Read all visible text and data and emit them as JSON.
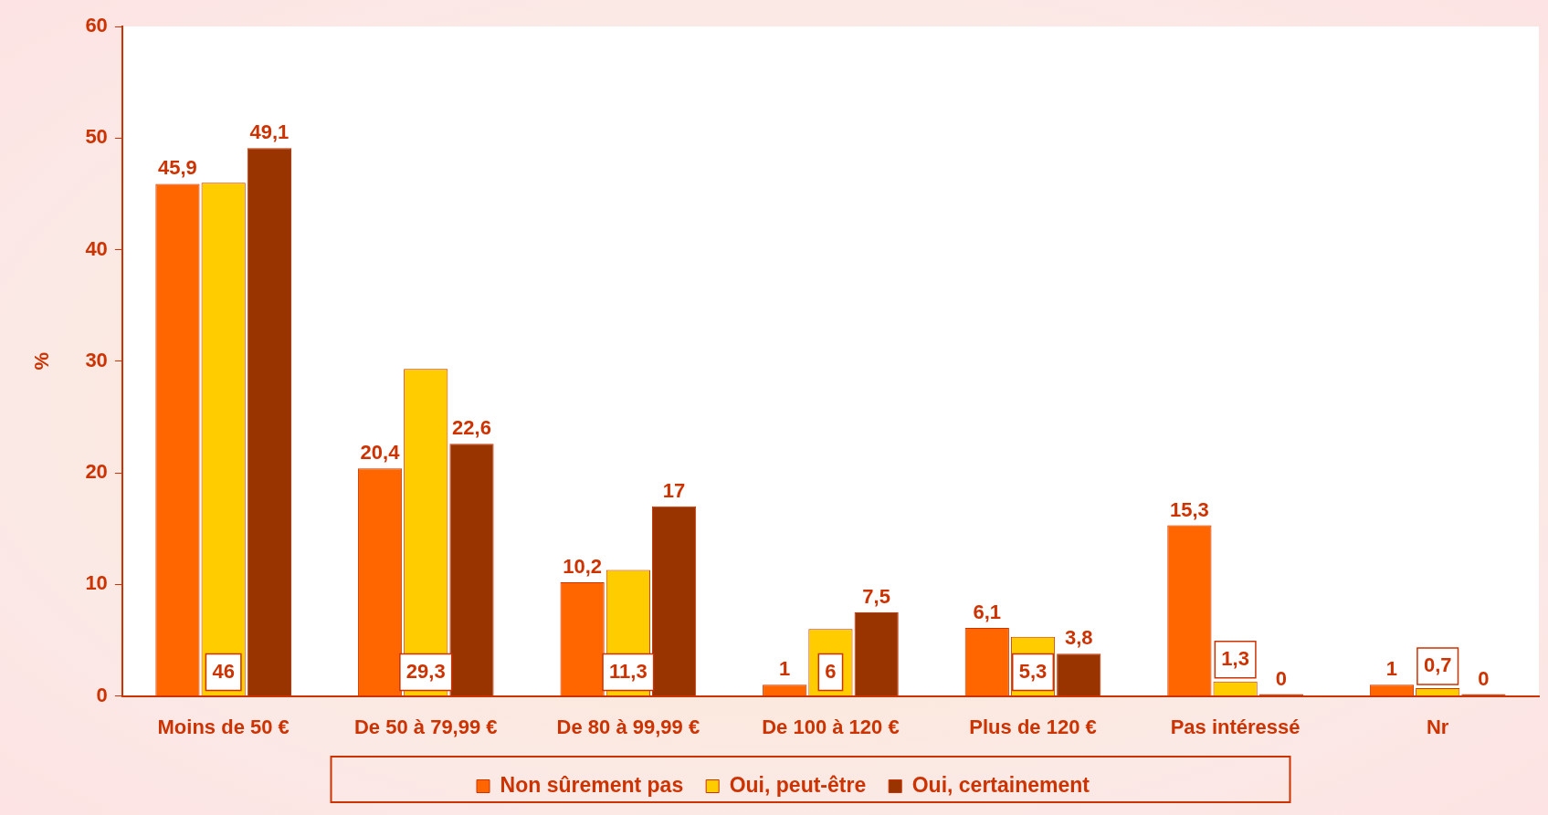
{
  "chart_data": {
    "type": "bar",
    "ylabel": "%",
    "categories": [
      "Moins de 50 €",
      "De 50 à 79,99 €",
      "De 80 à 99,99 €",
      "De 100 à 120 €",
      "Plus de 120 €",
      "Pas intéressé",
      "Nr"
    ],
    "series": [
      {
        "name": "Non sûrement pas",
        "color": "#ff6600",
        "values": [
          45.9,
          20.4,
          10.2,
          1,
          6.1,
          15.3,
          1
        ],
        "value_labels": [
          "45,9",
          "20,4",
          "10,2",
          "1",
          "6,1",
          "15,3",
          "1"
        ]
      },
      {
        "name": "Oui, peut-être",
        "color": "#ffcc00",
        "values": [
          46,
          29.3,
          11.3,
          6,
          5.3,
          1.3,
          0.7
        ],
        "value_labels": [
          "46",
          "29,3",
          "11,3",
          "6",
          "5,3",
          "1,3",
          "0,7"
        ]
      },
      {
        "name": "Oui, certainement",
        "color": "#993300",
        "values": [
          49.1,
          22.6,
          17,
          7.5,
          3.8,
          0,
          0
        ],
        "value_labels": [
          "49,1",
          "22,6",
          "17",
          "7,5",
          "3,8",
          "0",
          "0"
        ]
      }
    ],
    "ylim": [
      0,
      60
    ],
    "yticks": [
      0,
      10,
      20,
      30,
      40,
      50,
      60
    ],
    "grid": false,
    "legend": "bottom"
  }
}
